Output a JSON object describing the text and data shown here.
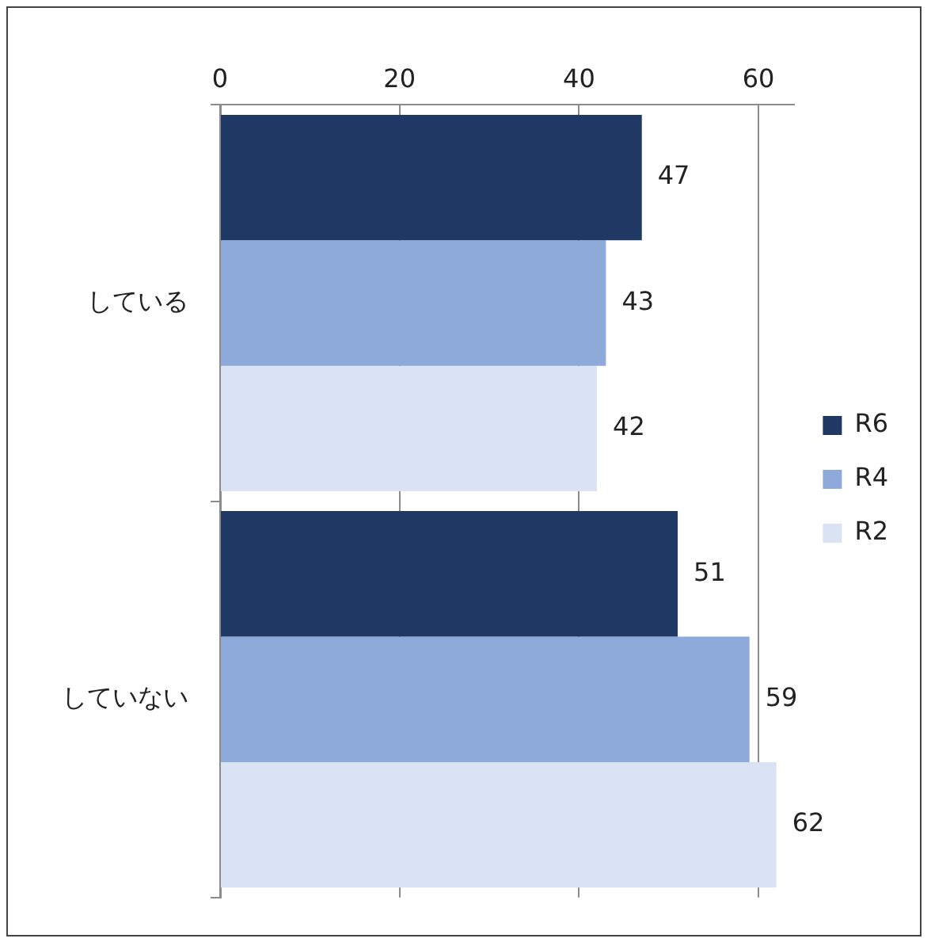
{
  "chart_data": {
    "type": "bar",
    "orientation": "horizontal",
    "categories": [
      "している",
      "していない"
    ],
    "series": [
      {
        "name": "R6",
        "color": "#1f3864",
        "values": [
          47,
          51
        ]
      },
      {
        "name": "R4",
        "color": "#8eaadb",
        "values": [
          43,
          59
        ]
      },
      {
        "name": "R2",
        "color": "#dae3f3",
        "values": [
          42,
          62
        ]
      }
    ],
    "xlim": [
      0,
      64
    ],
    "xticks": [
      0,
      20,
      40,
      60
    ],
    "grid": "x",
    "legend": "right",
    "data_labels": true
  }
}
